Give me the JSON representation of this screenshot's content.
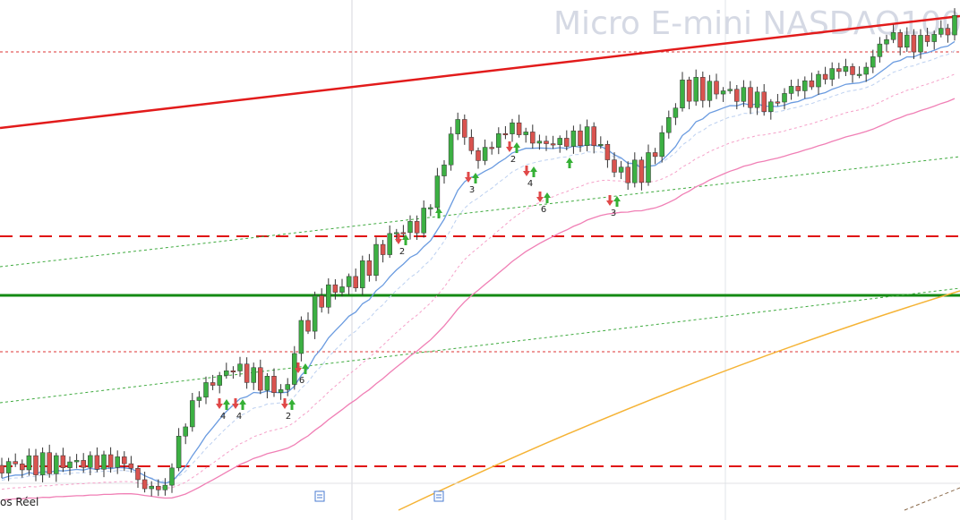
{
  "watermark": "Micro E-mini NASDAQ100",
  "signal_labels": [
    "4",
    "4",
    "2",
    "2",
    "6",
    "3",
    "2",
    "4",
    "6",
    "3"
  ],
  "footer_label": "os Réel"
}
